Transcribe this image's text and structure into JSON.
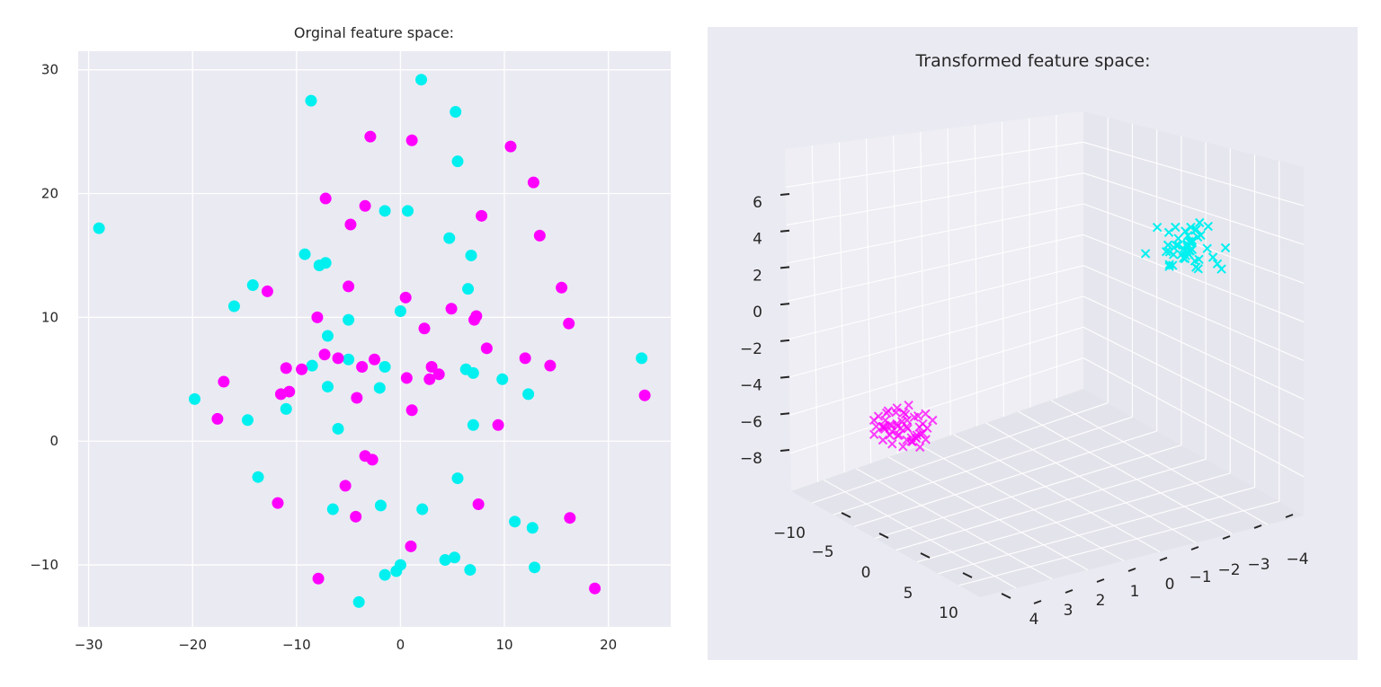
{
  "colors": {
    "class_a": "#00f0f0",
    "class_b": "#ff00ff",
    "panel_bg": "#eaeaf2",
    "grid": "#ffffff"
  },
  "chart_data": [
    {
      "type": "scatter",
      "title": "Orginal feature space:",
      "xlabel": "",
      "ylabel": "",
      "xlim": [
        -31,
        26
      ],
      "ylim": [
        -15,
        31.5
      ],
      "x_ticks": [
        "−30",
        "−20",
        "−10",
        "0",
        "10",
        "20"
      ],
      "x_tick_values": [
        -30,
        -20,
        -10,
        0,
        10,
        20
      ],
      "y_ticks": [
        "−10",
        "0",
        "10",
        "20",
        "30"
      ],
      "y_tick_values": [
        -10,
        0,
        10,
        20,
        30
      ],
      "grid": true,
      "series": [
        {
          "color": "#00f0f0",
          "points": [
            [
              2,
              29.2
            ],
            [
              -8.6,
              27.5
            ],
            [
              5.3,
              26.6
            ],
            [
              5.5,
              22.6
            ],
            [
              -1.5,
              18.6
            ],
            [
              0.7,
              18.6
            ],
            [
              -29,
              17.2
            ],
            [
              4.7,
              16.4
            ],
            [
              -9.2,
              15.1
            ],
            [
              -7.8,
              14.2
            ],
            [
              -7.2,
              14.4
            ],
            [
              6.8,
              15
            ],
            [
              -14.2,
              12.6
            ],
            [
              -16,
              10.9
            ],
            [
              6.5,
              12.3
            ],
            [
              0,
              10.5
            ],
            [
              -5,
              9.8
            ],
            [
              -7,
              8.5
            ],
            [
              -8.5,
              6.1
            ],
            [
              -5,
              6.6
            ],
            [
              -1.5,
              6
            ],
            [
              6.3,
              5.8
            ],
            [
              7,
              5.5
            ],
            [
              9.8,
              5
            ],
            [
              -7,
              4.4
            ],
            [
              -2,
              4.3
            ],
            [
              12.3,
              3.8
            ],
            [
              -19.8,
              3.4
            ],
            [
              -14.7,
              1.7
            ],
            [
              -11,
              2.6
            ],
            [
              -6,
              1
            ],
            [
              7,
              1.3
            ],
            [
              5.5,
              -3
            ],
            [
              -13.7,
              -2.9
            ],
            [
              -1.9,
              -5.2
            ],
            [
              2.1,
              -5.5
            ],
            [
              -6.5,
              -5.5
            ],
            [
              11,
              -6.5
            ],
            [
              12.7,
              -7
            ],
            [
              5.2,
              -9.4
            ],
            [
              4.3,
              -9.6
            ],
            [
              0,
              -10
            ],
            [
              -1.5,
              -10.8
            ],
            [
              -0.4,
              -10.5
            ],
            [
              6.7,
              -10.4
            ],
            [
              12.9,
              -10.2
            ],
            [
              -4,
              -13
            ],
            [
              23.2,
              6.7
            ]
          ]
        },
        {
          "color": "#ff00ff",
          "points": [
            [
              -2.9,
              24.6
            ],
            [
              1.1,
              24.3
            ],
            [
              10.6,
              23.8
            ],
            [
              12.8,
              20.9
            ],
            [
              -7.2,
              19.6
            ],
            [
              -3.4,
              19
            ],
            [
              7.8,
              18.2
            ],
            [
              -4.8,
              17.5
            ],
            [
              13.4,
              16.6
            ],
            [
              -5,
              12.5
            ],
            [
              15.5,
              12.4
            ],
            [
              -12.8,
              12.1
            ],
            [
              0.5,
              11.6
            ],
            [
              4.9,
              10.7
            ],
            [
              7.3,
              10.1
            ],
            [
              7.1,
              9.8
            ],
            [
              -8,
              10
            ],
            [
              16.2,
              9.5
            ],
            [
              2.3,
              9.1
            ],
            [
              8.3,
              7.5
            ],
            [
              -7.3,
              7
            ],
            [
              -6,
              6.7
            ],
            [
              -2.5,
              6.6
            ],
            [
              12,
              6.7
            ],
            [
              14.4,
              6.1
            ],
            [
              -3.7,
              6
            ],
            [
              -9.5,
              5.8
            ],
            [
              -11,
              5.9
            ],
            [
              3,
              6
            ],
            [
              3.7,
              5.4
            ],
            [
              0.6,
              5.1
            ],
            [
              2.8,
              5
            ],
            [
              -17,
              4.8
            ],
            [
              -10.7,
              4
            ],
            [
              -11.5,
              3.8
            ],
            [
              -4.2,
              3.5
            ],
            [
              1.1,
              2.5
            ],
            [
              -17.6,
              1.8
            ],
            [
              9.4,
              1.3
            ],
            [
              -3.4,
              -1.2
            ],
            [
              -2.7,
              -1.5
            ],
            [
              -5.3,
              -3.6
            ],
            [
              -11.8,
              -5
            ],
            [
              7.5,
              -5.1
            ],
            [
              -4.3,
              -6.1
            ],
            [
              16.3,
              -6.2
            ],
            [
              1,
              -8.5
            ],
            [
              -7.9,
              -11.1
            ],
            [
              18.7,
              -11.9
            ],
            [
              23.5,
              3.7
            ]
          ]
        }
      ]
    },
    {
      "type": "scatter",
      "title": "Transformed feature space:",
      "xlabel": "",
      "ylabel": "",
      "zlim": [
        -9,
        7
      ],
      "grid": true,
      "x_ticks": [
        "−10",
        "−5",
        "0",
        "5",
        "10"
      ],
      "y_ticks": [
        "4",
        "3",
        "2",
        "1",
        "0",
        "−1",
        "−2",
        "−3",
        "−4"
      ],
      "z_ticks": [
        "6",
        "4",
        "2",
        "0",
        "−2",
        "−4",
        "−6",
        "−8"
      ],
      "z_tick_values": [
        6,
        4,
        2,
        0,
        -2,
        -4,
        -6,
        -8
      ],
      "series": [
        {
          "color": "#00f0f0",
          "marker": "x",
          "x_range": [
            -5,
            5
          ],
          "y_range": [
            -4,
            -1
          ],
          "z_range": [
            1,
            7
          ],
          "count": 50
        },
        {
          "color": "#ff00ff",
          "marker": "x",
          "x_range": [
            -10,
            -3
          ],
          "y_range": [
            1,
            4
          ],
          "z_range": [
            -9,
            -3
          ],
          "count": 50
        }
      ]
    }
  ]
}
